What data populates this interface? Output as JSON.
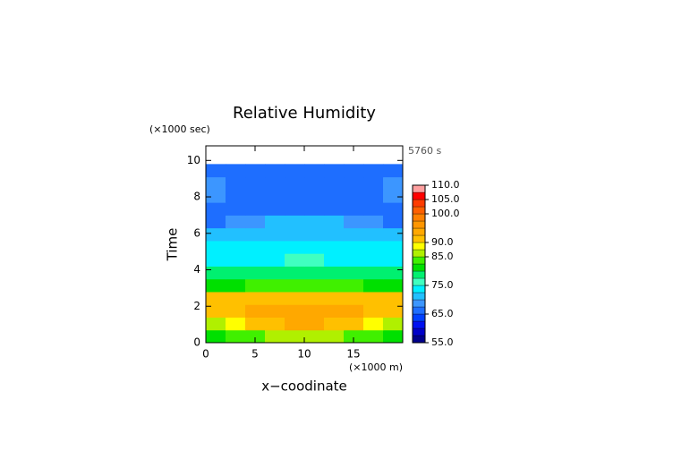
{
  "chart_data": {
    "type": "contour",
    "title": "Relative Humidity",
    "y_unit_label": "(×1000 sec)",
    "time_label": "5760 s",
    "ylabel": "Time",
    "x_unit_label": "(×1000 m)",
    "xlabel": "x−coodinate",
    "xlim": [
      0,
      20
    ],
    "ylim": [
      0,
      10.8
    ],
    "xticks": [
      0,
      5,
      10,
      15
    ],
    "yticks": [
      0,
      2,
      4,
      6,
      8,
      10
    ],
    "x_edges": [
      0,
      2,
      4,
      6,
      8,
      10,
      12,
      14,
      16,
      18,
      20
    ],
    "y_edges": [
      0,
      0.7,
      1.4,
      2.1,
      2.8,
      3.5,
      4.2,
      4.9,
      5.6,
      6.3,
      7,
      7.7,
      8.4,
      9.1,
      9.8
    ],
    "z": [
      [
        82,
        83,
        84,
        85,
        86,
        86,
        85,
        84,
        83,
        82
      ],
      [
        86,
        88,
        90,
        92,
        93,
        93,
        92,
        90,
        88,
        86
      ],
      [
        91,
        92,
        93,
        94,
        94,
        94,
        94,
        93,
        92,
        91
      ],
      [
        90,
        91,
        91,
        91,
        91,
        91,
        91,
        91,
        91,
        90
      ],
      [
        81,
        82,
        83,
        84,
        84,
        84,
        84,
        83,
        82,
        81
      ],
      [
        78,
        78,
        79,
        79,
        79,
        79,
        79,
        79,
        78,
        78
      ],
      [
        74,
        74,
        74,
        74,
        75,
        75,
        74,
        74,
        74,
        74
      ],
      [
        73,
        73,
        73,
        73,
        73,
        73,
        73,
        73,
        73,
        73
      ],
      [
        70,
        71,
        72,
        72,
        72,
        72,
        72,
        72,
        71,
        70
      ],
      [
        67,
        68,
        69,
        70,
        71,
        71,
        70,
        69,
        68,
        67
      ],
      [
        67,
        67,
        67,
        67,
        67,
        67,
        67,
        67,
        67,
        67
      ],
      [
        69,
        67,
        67,
        67,
        67,
        67,
        67,
        67,
        67,
        69
      ],
      [
        68,
        67,
        67,
        67,
        67,
        67,
        67,
        67,
        67,
        68
      ],
      [
        67,
        67,
        67,
        67,
        67,
        67,
        67,
        67,
        67,
        67
      ]
    ],
    "levels": [
      55,
      57.5,
      60,
      62.5,
      65,
      67.5,
      70,
      72.5,
      75,
      77.5,
      80,
      82.5,
      85,
      87.5,
      90,
      92.5,
      95,
      97.5,
      100,
      102.5,
      105,
      107.5,
      110
    ],
    "colors": [
      "#00008c",
      "#0000c8",
      "#0010f0",
      "#0040ff",
      "#1e6eff",
      "#3c96ff",
      "#22c0ff",
      "#00f0ff",
      "#40ffc0",
      "#00f070",
      "#00e000",
      "#40f000",
      "#b0f000",
      "#ffff00",
      "#ffc000",
      "#ffa800",
      "#ff9600",
      "#ff8000",
      "#ff6000",
      "#ff3c00",
      "#ff0000",
      "#ffa0a0"
    ],
    "colorbar_lim": [
      55,
      110
    ],
    "colorbar_ticks": [
      {
        "value": 55,
        "label": "55.0"
      },
      {
        "value": 65,
        "label": "65.0"
      },
      {
        "value": 75,
        "label": "75.0"
      },
      {
        "value": 85,
        "label": "85.0"
      },
      {
        "value": 90,
        "label": "90.0"
      },
      {
        "value": 100,
        "label": "100.0"
      },
      {
        "value": 105,
        "label": "105.0"
      },
      {
        "value": 110,
        "label": "110.0"
      }
    ]
  }
}
